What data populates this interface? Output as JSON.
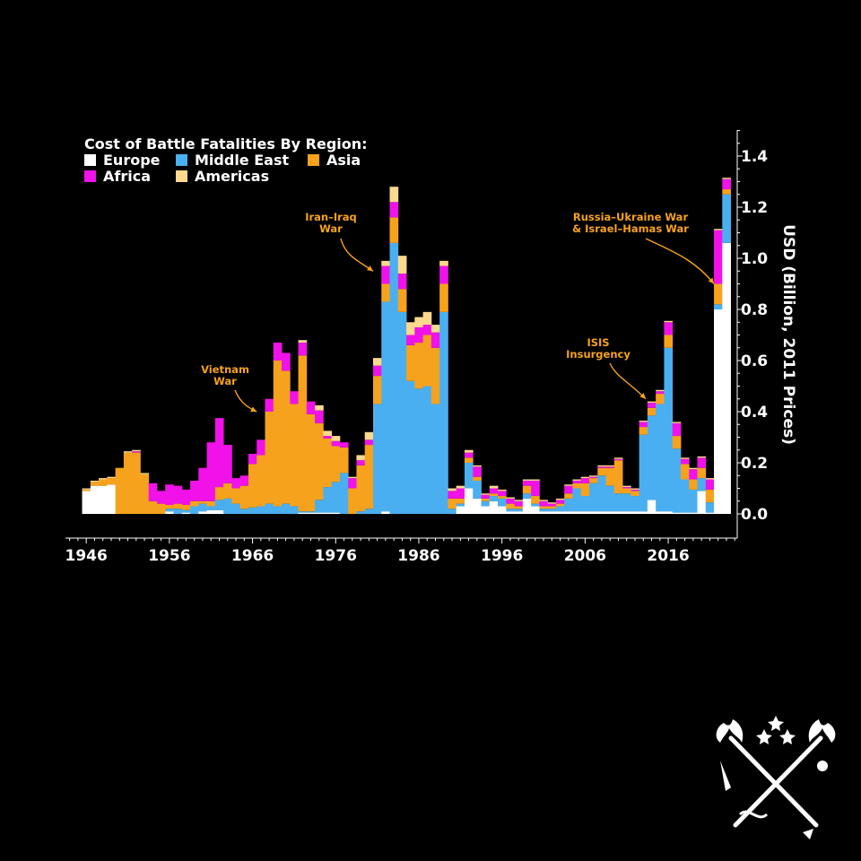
{
  "chart_data": {
    "type": "bar",
    "stacked": true,
    "legend_title": "Cost of Battle Fatalities By Region:",
    "legend_position": "top-left",
    "ylabel": "USD (Billion, 2011 Prices)",
    "y_axis_side": "right",
    "ylim": [
      0,
      1.5
    ],
    "y_ticks": [
      0.0,
      0.2,
      0.4,
      0.6,
      0.8,
      1.0,
      1.2,
      1.4
    ],
    "y_tick_labels": [
      "0.0",
      "0.2",
      "0.4",
      "0.6",
      "0.8",
      "1.0",
      "1.2",
      "1.4"
    ],
    "xlim": [
      1943.5,
      2024.3
    ],
    "x_ticks": [
      1946,
      1956,
      1966,
      1976,
      1986,
      1996,
      2006,
      2016
    ],
    "x_tick_labels": [
      "1946",
      "1956",
      "1966",
      "1976",
      "1986",
      "1996",
      "2006",
      "2016"
    ],
    "grid": false,
    "categories": [
      1946,
      1947,
      1948,
      1949,
      1950,
      1951,
      1952,
      1953,
      1954,
      1955,
      1956,
      1957,
      1958,
      1959,
      1960,
      1961,
      1962,
      1963,
      1964,
      1965,
      1966,
      1967,
      1968,
      1969,
      1970,
      1971,
      1972,
      1973,
      1974,
      1975,
      1976,
      1977,
      1978,
      1979,
      1980,
      1981,
      1982,
      1983,
      1984,
      1985,
      1986,
      1987,
      1988,
      1989,
      1990,
      1991,
      1992,
      1993,
      1994,
      1995,
      1996,
      1997,
      1998,
      1999,
      2000,
      2001,
      2002,
      2003,
      2004,
      2005,
      2006,
      2007,
      2008,
      2009,
      2010,
      2011,
      2012,
      2013,
      2014,
      2015,
      2016,
      2017,
      2018,
      2019,
      2020,
      2021,
      2022,
      2023
    ],
    "series": [
      {
        "name": "Europe",
        "color": "#ffffff",
        "values": [
          0.09,
          0.11,
          0.11,
          0.115,
          0,
          0,
          0,
          0,
          0,
          0,
          0.01,
          0,
          0.005,
          0,
          0.01,
          0.015,
          0.015,
          0,
          0,
          0,
          0,
          0,
          0,
          0,
          0,
          0,
          0.005,
          0.005,
          0.005,
          0.005,
          0.005,
          0,
          0,
          0,
          0,
          0,
          0.01,
          0,
          0,
          0,
          0,
          0,
          0,
          0,
          0,
          0.03,
          0.1,
          0.06,
          0.03,
          0.05,
          0.03,
          0.01,
          0.01,
          0.06,
          0.03,
          0.01,
          0.01,
          0.01,
          0.01,
          0.01,
          0.01,
          0.01,
          0.01,
          0.01,
          0.01,
          0.01,
          0.01,
          0.01,
          0.055,
          0.01,
          0.01,
          0.005,
          0.005,
          0.005,
          0.09,
          0.005,
          0.8,
          1.06
        ]
      },
      {
        "name": "Middle East",
        "color": "#4aaff0",
        "values": [
          0,
          0,
          0,
          0,
          0,
          0,
          0,
          0,
          0,
          0,
          0.01,
          0.02,
          0.01,
          0.03,
          0.03,
          0.015,
          0.04,
          0.06,
          0.04,
          0.02,
          0.025,
          0.03,
          0.04,
          0.03,
          0.04,
          0.03,
          0.005,
          0.005,
          0.05,
          0.1,
          0.12,
          0.16,
          0,
          0.01,
          0.02,
          0.43,
          0.82,
          1.06,
          0.79,
          0.52,
          0.49,
          0.5,
          0.43,
          0.79,
          0.02,
          0.01,
          0.1,
          0.07,
          0.02,
          0.02,
          0.03,
          0.01,
          0.01,
          0.02,
          0.01,
          0.01,
          0.01,
          0.02,
          0.05,
          0.09,
          0.06,
          0.11,
          0.14,
          0.1,
          0.07,
          0.07,
          0.06,
          0.3,
          0.33,
          0.42,
          0.64,
          0.25,
          0.13,
          0.09,
          0.05,
          0.04,
          0.02,
          0.19
        ]
      },
      {
        "name": "Asia",
        "color": "#f7a21d",
        "values": [
          0.005,
          0.015,
          0.025,
          0.025,
          0.18,
          0.24,
          0.24,
          0.155,
          0.05,
          0.04,
          0.015,
          0.02,
          0.02,
          0.02,
          0.01,
          0.02,
          0.05,
          0.06,
          0.06,
          0.09,
          0.17,
          0.2,
          0.36,
          0.57,
          0.52,
          0.4,
          0.61,
          0.38,
          0.3,
          0.19,
          0.14,
          0.1,
          0.1,
          0.18,
          0.25,
          0.11,
          0.07,
          0.1,
          0.09,
          0.14,
          0.18,
          0.2,
          0.22,
          0.11,
          0.04,
          0.02,
          0.02,
          0.015,
          0.01,
          0.01,
          0.01,
          0.02,
          0.01,
          0.03,
          0.03,
          0.01,
          0.01,
          0.01,
          0.02,
          0.02,
          0.05,
          0.02,
          0.03,
          0.07,
          0.13,
          0.02,
          0.02,
          0.03,
          0.03,
          0.04,
          0.05,
          0.05,
          0.06,
          0.04,
          0.04,
          0.05,
          0.08,
          0.02
        ]
      },
      {
        "name": "Africa",
        "color": "#f012e8",
        "values": [
          0,
          0,
          0,
          0,
          0,
          0,
          0.005,
          0,
          0.07,
          0.05,
          0.08,
          0.07,
          0.06,
          0.08,
          0.13,
          0.23,
          0.27,
          0.15,
          0.04,
          0.04,
          0.04,
          0.06,
          0.05,
          0.07,
          0.07,
          0.05,
          0.05,
          0.05,
          0.05,
          0.01,
          0.02,
          0.02,
          0.04,
          0.02,
          0.02,
          0.04,
          0.07,
          0.06,
          0.06,
          0.04,
          0.06,
          0.04,
          0.06,
          0.07,
          0.03,
          0.04,
          0.02,
          0.04,
          0.015,
          0.02,
          0.02,
          0.02,
          0.02,
          0.02,
          0.06,
          0.02,
          0.01,
          0.015,
          0.03,
          0.01,
          0.02,
          0.005,
          0.005,
          0.005,
          0.005,
          0.005,
          0.005,
          0.02,
          0.02,
          0.01,
          0.05,
          0.05,
          0.02,
          0.04,
          0.04,
          0.04,
          0.21,
          0.04
        ]
      },
      {
        "name": "Americas",
        "color": "#fcd98d",
        "values": [
          0.005,
          0.005,
          0.005,
          0.005,
          0,
          0.005,
          0.005,
          0.005,
          0,
          0,
          0,
          0,
          0,
          0,
          0,
          0,
          0,
          0,
          0,
          0,
          0,
          0,
          0,
          0,
          0,
          0,
          0.01,
          0,
          0.02,
          0.02,
          0.02,
          0,
          0.005,
          0.02,
          0.03,
          0.03,
          0.02,
          0.06,
          0.07,
          0.05,
          0.04,
          0.05,
          0.03,
          0.02,
          0.01,
          0.01,
          0.01,
          0.005,
          0.005,
          0.01,
          0.005,
          0.005,
          0.005,
          0.005,
          0.005,
          0.005,
          0.005,
          0.005,
          0.005,
          0.005,
          0.005,
          0.005,
          0.005,
          0.005,
          0.005,
          0.005,
          0.005,
          0.005,
          0.005,
          0.005,
          0.005,
          0.005,
          0.005,
          0.005,
          0.005,
          0.005,
          0.005,
          0.005
        ]
      }
    ],
    "annotations": [
      {
        "lines": [
          "Vietnam",
          "War"
        ],
        "points_to": [
          1966.5,
          0.4
        ]
      },
      {
        "lines": [
          "Iran–Iraq",
          "War"
        ],
        "points_to": [
          1980.5,
          0.95
        ]
      },
      {
        "lines": [
          "ISIS",
          "Insurgency"
        ],
        "points_to": [
          2013.3,
          0.45
        ]
      },
      {
        "lines": [
          "Russia–Ukraine War",
          "& Israel–Hamas War"
        ],
        "points_to": [
          2021.5,
          0.9
        ]
      }
    ]
  },
  "logo": {
    "name": "crossed-torches-logo",
    "color": "#ffffff"
  }
}
